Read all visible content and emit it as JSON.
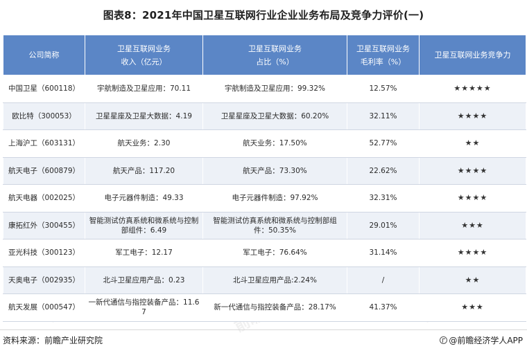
{
  "title": "图表8：2021年中国卫星互联网行业企业业务布局及竞争力评价(一)",
  "table": {
    "headers": [
      {
        "line1": "公司简称",
        "line2": ""
      },
      {
        "line1": "卫星互联网业务",
        "line2": "收入（亿元）"
      },
      {
        "line1": "卫星互联网业务",
        "line2": "占比（%）"
      },
      {
        "line1": "卫星互联网业务",
        "line2": "毛利率（%）"
      },
      {
        "line1": "卫星互联网业务竞争力",
        "line2": ""
      }
    ],
    "rows": [
      {
        "company": "中国卫星（600118）",
        "revenue": "宇航制造及卫星应用：70.11",
        "share": "宇航制造及卫星应用：99.32%",
        "margin": "12.57%",
        "rating": "★★★★★"
      },
      {
        "company": "欧比特（300053）",
        "revenue": "卫星星座及卫星大数据：4.19",
        "share": "卫星星座及卫星大数据：60.20%",
        "margin": "32.11%",
        "rating": "★★★★"
      },
      {
        "company": "上海沪工（603131）",
        "revenue": "航天业务：2.30",
        "share": "航天业务：17.50%",
        "margin": "52.77%",
        "rating": "★★"
      },
      {
        "company": "航天电子（600879）",
        "revenue": "航天产品：117.20",
        "share": "航天产品：73.30%",
        "margin": "22.62%",
        "rating": "★★★★"
      },
      {
        "company": "航天电器（002025）",
        "revenue": "电子元器件制造：49.33",
        "share": "电子元器件制造：97.92%",
        "margin": "32.31%",
        "rating": "★★★★"
      },
      {
        "company": "康拓红外（300455）",
        "revenue": "智能测试仿真系统和微系统与控制部组件：6.49",
        "share": "智能测试仿真系统和微系统与控制部组件：50.35%",
        "margin": "29.01%",
        "rating": "★★★"
      },
      {
        "company": "亚光科技（300123）",
        "revenue": "军工电子：12.17",
        "share": "军工电子：76.64%",
        "margin": "31.14%",
        "rating": "★★★★"
      },
      {
        "company": "天奥电子（002935）",
        "revenue": "北斗卫星应用产品：0.23",
        "share": "北斗卫星应用产品:2.24%",
        "margin": "/",
        "rating": "★★"
      },
      {
        "company": "航天发展（000547）",
        "revenue": "一新代通信与指控装备产品：11.67",
        "share": "新一代通信与指控装备产品：28.17%",
        "margin": "41.37%",
        "rating": "★★★"
      }
    ]
  },
  "footer": {
    "source": "资料来源：前瞻产业研究院",
    "brand": "@前瞻经济学人APP"
  },
  "watermark": "前瞻产业研究院"
}
